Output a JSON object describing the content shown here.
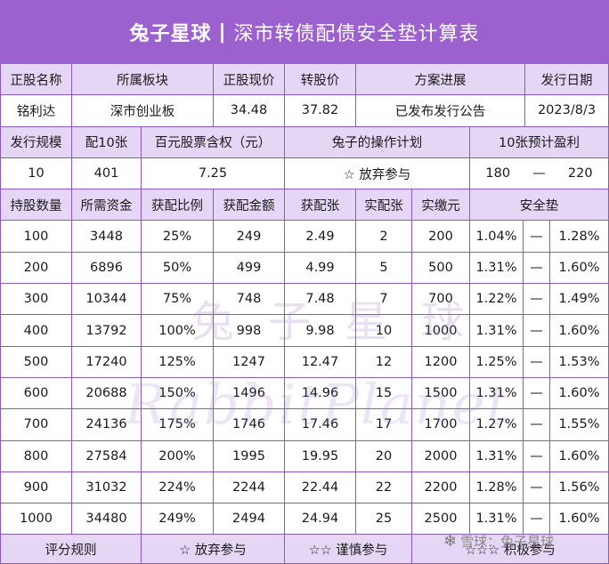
{
  "title": {
    "brand": "兔子星球",
    "separator": "|",
    "text": "深市转债配债安全垫计算表"
  },
  "info": {
    "headers": [
      "正股名称",
      "所属板块",
      "正股现价",
      "转股价",
      "方案进展",
      "发行日期"
    ],
    "values": [
      "铭利达",
      "深市创业板",
      "34.48",
      "37.82",
      "已发布发行公告",
      "2023/8/3"
    ]
  },
  "issue": {
    "headers": [
      "发行规模",
      "配10张",
      "百元股票含权（元）",
      "兔子的操作计划",
      "10张预计盈利"
    ],
    "values": {
      "scale": "10",
      "per10": "401",
      "rights": "7.25",
      "plan": "☆ 放弃参与",
      "profit_low": "180",
      "profit_dash": "—",
      "profit_high": "220"
    }
  },
  "table": {
    "headers": [
      "持股数量",
      "所需资金",
      "获配比例",
      "获配金额",
      "获配张",
      "实配张",
      "实缴元",
      "安全垫"
    ],
    "rows": [
      [
        "100",
        "3448",
        "25%",
        "249",
        "2.49",
        "2",
        "200",
        "1.04%",
        "—",
        "1.28%"
      ],
      [
        "200",
        "6896",
        "50%",
        "499",
        "4.99",
        "5",
        "500",
        "1.31%",
        "—",
        "1.60%"
      ],
      [
        "300",
        "10344",
        "75%",
        "748",
        "7.48",
        "7",
        "700",
        "1.22%",
        "—",
        "1.49%"
      ],
      [
        "400",
        "13792",
        "100%",
        "998",
        "9.98",
        "10",
        "1000",
        "1.31%",
        "—",
        "1.60%"
      ],
      [
        "500",
        "17240",
        "125%",
        "1247",
        "12.47",
        "12",
        "1200",
        "1.25%",
        "—",
        "1.53%"
      ],
      [
        "600",
        "20688",
        "150%",
        "1496",
        "14.96",
        "15",
        "1500",
        "1.31%",
        "—",
        "1.60%"
      ],
      [
        "700",
        "24136",
        "175%",
        "1746",
        "17.46",
        "17",
        "1700",
        "1.27%",
        "—",
        "1.55%"
      ],
      [
        "800",
        "27584",
        "200%",
        "1995",
        "19.95",
        "20",
        "2000",
        "1.31%",
        "—",
        "1.60%"
      ],
      [
        "900",
        "31032",
        "224%",
        "2244",
        "22.44",
        "22",
        "2200",
        "1.28%",
        "—",
        "1.56%"
      ],
      [
        "1000",
        "34480",
        "249%",
        "2494",
        "24.94",
        "25",
        "2500",
        "1.31%",
        "—",
        "1.60%"
      ]
    ]
  },
  "footer": {
    "rule": "评分规则",
    "r1": "☆ 放弃参与",
    "r2": "☆☆ 谨慎参与",
    "r3": "☆☆☆ 积极参与"
  },
  "watermark": {
    "cn": "兔子星球",
    "en": "RabbitPlanet",
    "corner": "雪球：兔子星球"
  }
}
